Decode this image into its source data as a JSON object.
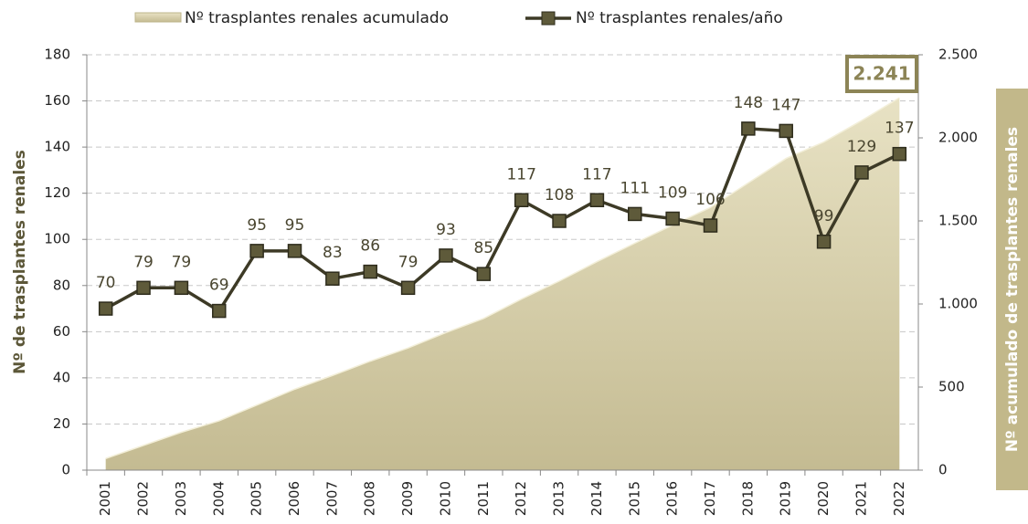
{
  "chart_data": {
    "type": "line",
    "categories": [
      "2001",
      "2002",
      "2003",
      "2004",
      "2005",
      "2006",
      "2007",
      "2008",
      "2009",
      "2010",
      "2011",
      "2012",
      "2013",
      "2014",
      "2015",
      "2016",
      "2017",
      "2018",
      "2019",
      "2020",
      "2021",
      "2022"
    ],
    "series": [
      {
        "name": "Nº trasplantes renales acumulado",
        "type": "area",
        "axis": "y2",
        "color": "#cdc5a0",
        "values": [
          70,
          149,
          228,
          297,
          392,
          487,
          570,
          656,
          735,
          828,
          913,
          1030,
          1138,
          1255,
          1366,
          1475,
          1581,
          1729,
          1876,
          1975,
          2104,
          2241
        ]
      },
      {
        "name": "Nº trasplantes renales/año",
        "type": "line",
        "color": "#3d3a26",
        "values": [
          70,
          79,
          79,
          69,
          95,
          95,
          83,
          86,
          79,
          93,
          85,
          117,
          108,
          117,
          111,
          109,
          106,
          148,
          147,
          99,
          129,
          137
        ]
      }
    ],
    "ylabel": "Nº de trasplantes renales",
    "y2label": "Nº acumulado de trasplantes renales",
    "ylim": [
      0,
      180
    ],
    "yticks": [
      0,
      20,
      40,
      60,
      80,
      100,
      120,
      140,
      160,
      180
    ],
    "y2lim": [
      0,
      2500
    ],
    "y2ticks": [
      0,
      500,
      {
        "value": 1000,
        "label": "1.000"
      },
      {
        "value": 1500,
        "label": "1.500"
      },
      {
        "value": 2000,
        "label": "2.000"
      },
      {
        "value": 2500,
        "label": "2.500"
      }
    ],
    "annotation": "2.241",
    "grid": true,
    "legend": "top"
  }
}
